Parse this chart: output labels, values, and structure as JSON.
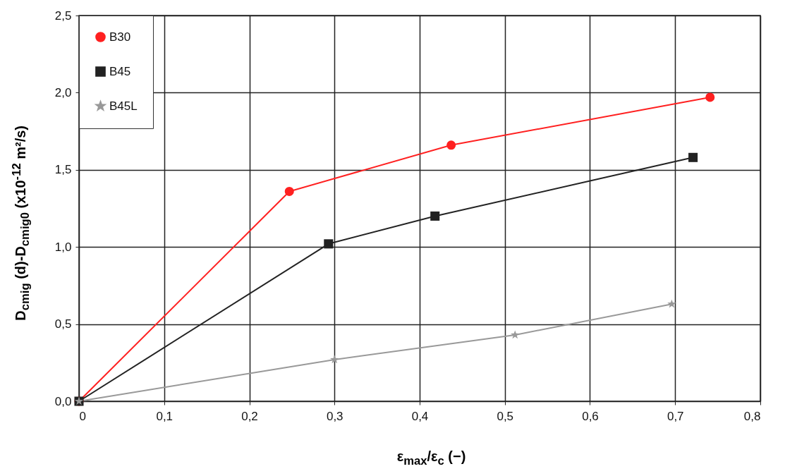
{
  "chart_data": {
    "type": "line",
    "xlabel": "ε$_{max}$/ε$_{c}$ (−)",
    "ylabel": "D$_{cmig}$ (d)-D$_{cmig0}$ (x10$^{-12}$ m²/s)",
    "series": [
      {
        "name": "B30",
        "color": "#ff2020",
        "marker": "circle",
        "x": [
          0,
          0.247,
          0.437,
          0.741
        ],
        "values": [
          0,
          1.36,
          1.66,
          1.97
        ]
      },
      {
        "name": "B45",
        "color": "#222222",
        "marker": "square",
        "x": [
          0,
          0.293,
          0.418,
          0.721
        ],
        "values": [
          0,
          1.02,
          1.2,
          1.58
        ]
      },
      {
        "name": "B45L",
        "color": "#999999",
        "marker": "star",
        "x": [
          0,
          0.3,
          0.512,
          0.696
        ],
        "values": [
          0,
          0.27,
          0.43,
          0.63
        ]
      }
    ],
    "xlim": [
      0,
      0.8
    ],
    "xticks": [
      0,
      {
        "value": 0.1,
        "label": "0,1"
      },
      {
        "value": 0.2,
        "label": "0,2"
      },
      {
        "value": 0.3,
        "label": "0,3"
      },
      {
        "value": 0.4,
        "label": "0,4"
      },
      {
        "value": 0.5,
        "label": "0,5"
      },
      {
        "value": 0.6,
        "label": "0,6"
      },
      {
        "value": 0.7,
        "label": "0,7"
      },
      {
        "value": 0.8,
        "label": "0,8"
      }
    ],
    "ylim": [
      0,
      2.5
    ],
    "yticks": [
      {
        "value": 0,
        "label": "0,0"
      },
      {
        "value": 0.5,
        "label": "0,5"
      },
      {
        "value": 1,
        "label": "1,0"
      },
      {
        "value": 1.5,
        "label": "1,5"
      },
      {
        "value": 2,
        "label": "2,0"
      },
      {
        "value": 2.5,
        "label": "2,5"
      }
    ],
    "grid": true,
    "legend": "top left"
  }
}
